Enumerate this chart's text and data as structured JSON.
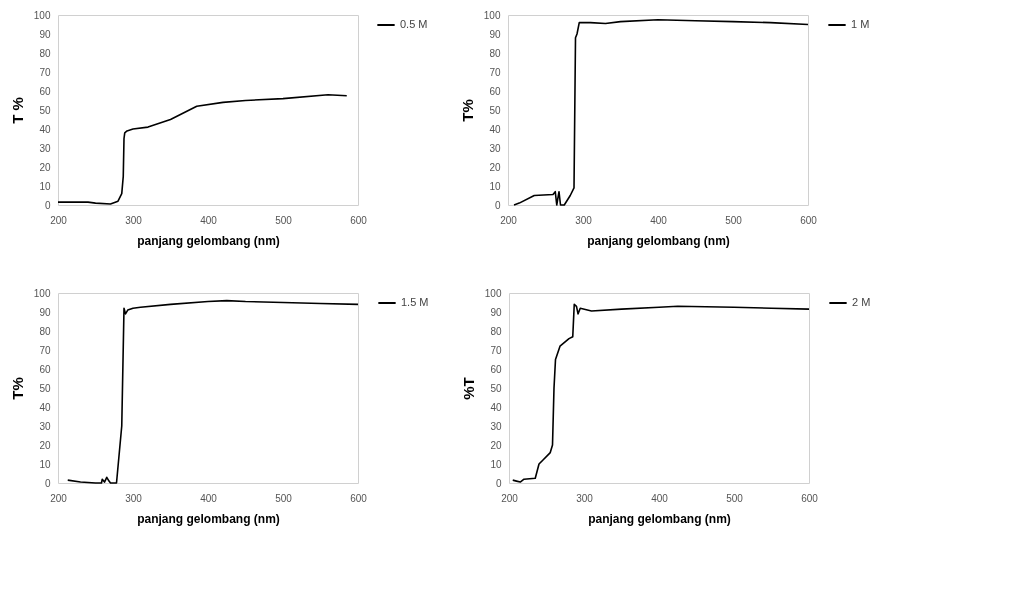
{
  "chart_data": [
    {
      "type": "line",
      "xlabel": "panjang gelombang (nm)",
      "ylabel": "T %",
      "xlim": [
        200,
        600
      ],
      "xticks": [
        200,
        300,
        400,
        500,
        600
      ],
      "ylim": [
        0,
        100
      ],
      "yticks": [
        0,
        10,
        20,
        30,
        40,
        50,
        60,
        70,
        80,
        90,
        100
      ],
      "legend": "right",
      "series": [
        {
          "name": "0.5 M",
          "color": "#000000",
          "x": [
            200,
            240,
            250,
            270,
            280,
            285,
            287,
            288,
            289,
            292,
            300,
            320,
            350,
            385,
            420,
            450,
            500,
            560,
            585
          ],
          "values": [
            1.5,
            1.5,
            1,
            0.5,
            2,
            6,
            15,
            35,
            38,
            39,
            40,
            41,
            45,
            52,
            54,
            55,
            56,
            58,
            57.5
          ]
        }
      ]
    },
    {
      "type": "line",
      "xlabel": "panjang gelombang (nm)",
      "ylabel": "T%",
      "xlim": [
        200,
        600
      ],
      "xticks": [
        200,
        300,
        400,
        500,
        600
      ],
      "ylim": [
        0,
        100
      ],
      "yticks": [
        0,
        10,
        20,
        30,
        40,
        50,
        60,
        70,
        80,
        90,
        100
      ],
      "legend": "right",
      "series": [
        {
          "name": "1 M",
          "color": "#000000",
          "x": [
            208,
            215,
            235,
            260,
            263,
            265,
            268,
            270,
            275,
            283,
            288,
            290,
            292,
            295,
            310,
            330,
            350,
            400,
            450,
            500,
            550,
            600
          ],
          "values": [
            0,
            1,
            5,
            5.5,
            7,
            0,
            7,
            0,
            0,
            5,
            9,
            88,
            90,
            96,
            96,
            95.5,
            96.5,
            97.5,
            97,
            96.5,
            96,
            95
          ]
        }
      ]
    },
    {
      "type": "line",
      "xlabel": "panjang gelombang (nm)",
      "ylabel": "T%",
      "xlim": [
        200,
        600
      ],
      "xticks": [
        200,
        300,
        400,
        500,
        600
      ],
      "ylim": [
        0,
        100
      ],
      "yticks": [
        0,
        10,
        20,
        30,
        40,
        50,
        60,
        70,
        80,
        90,
        100
      ],
      "legend": "right",
      "series": [
        {
          "name": "1.5 M",
          "color": "#000000",
          "x": [
            213,
            230,
            250,
            258,
            259,
            262,
            265,
            268,
            270,
            278,
            285,
            288,
            290,
            293,
            300,
            310,
            350,
            400,
            425,
            450,
            500,
            550,
            600
          ],
          "values": [
            1.5,
            0.5,
            0,
            0,
            2,
            0.5,
            3,
            1,
            0,
            0,
            30,
            92,
            89,
            91,
            92,
            92.5,
            94,
            95.5,
            96,
            95.5,
            95,
            94.5,
            94
          ]
        }
      ]
    },
    {
      "type": "line",
      "xlabel": "panjang gelombang (nm)",
      "ylabel": "%T",
      "xlim": [
        200,
        600
      ],
      "xticks": [
        200,
        300,
        400,
        500,
        600
      ],
      "ylim": [
        0,
        100
      ],
      "yticks": [
        0,
        10,
        20,
        30,
        40,
        50,
        60,
        70,
        80,
        90,
        100
      ],
      "legend": "right",
      "series": [
        {
          "name": "2 M",
          "color": "#000000",
          "x": [
            205,
            210,
            215,
            220,
            235,
            240,
            245,
            255,
            258,
            260,
            262,
            268,
            280,
            285,
            287,
            290,
            292,
            295,
            310,
            350,
            400,
            425,
            500,
            550,
            600
          ],
          "values": [
            1.5,
            1,
            0.5,
            2,
            2.5,
            10,
            12,
            16,
            20,
            50,
            65,
            72,
            76,
            77,
            94,
            93,
            89,
            92,
            90.5,
            91.5,
            92.5,
            93,
            92.5,
            92,
            91.5
          ]
        }
      ]
    }
  ]
}
